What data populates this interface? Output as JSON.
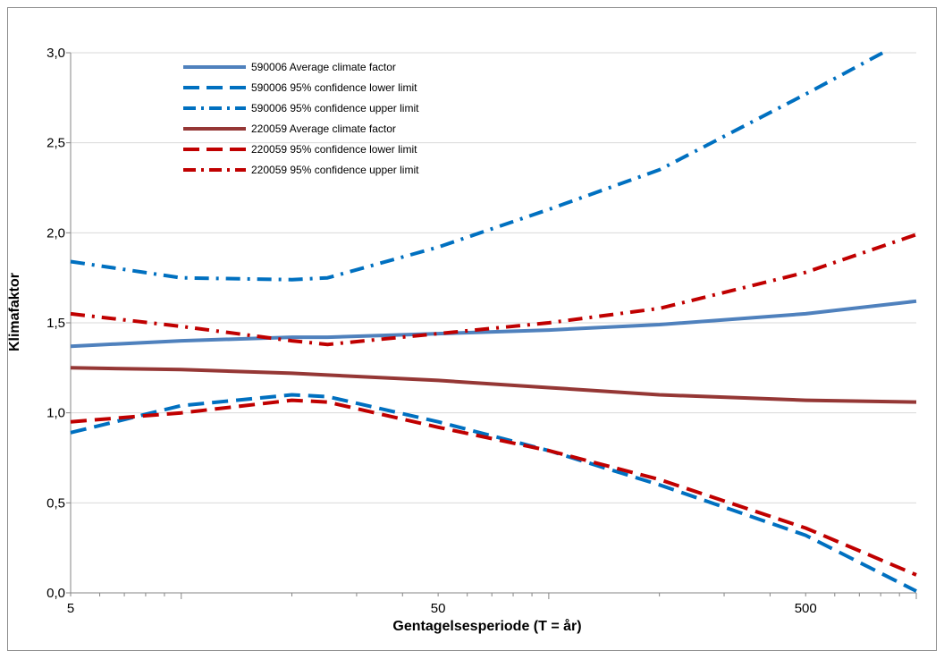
{
  "chart_data": {
    "type": "line",
    "title": "",
    "xlabel": "Gentagelsesperiode (T = år)",
    "ylabel": "Klimafaktor",
    "x_scale": "log",
    "xlim": [
      5,
      1000
    ],
    "ylim": [
      0,
      3
    ],
    "x_ticks": [
      5,
      50,
      500
    ],
    "x_tick_labels": [
      "5",
      "50",
      "500"
    ],
    "y_ticks": [
      0,
      0.5,
      1.0,
      1.5,
      2.0,
      2.5,
      3.0
    ],
    "y_tick_labels": [
      "0,0",
      "0,5",
      "1,0",
      "1,5",
      "2,0",
      "2,5",
      "3,0"
    ],
    "grid": "horizontal",
    "legend_position": "top-left",
    "x": [
      5,
      10,
      20,
      25,
      50,
      100,
      200,
      500,
      1000
    ],
    "series": [
      {
        "name": "590006 Average climate factor",
        "color": "#4f81bd",
        "style": "solid",
        "values": [
          1.37,
          1.4,
          1.42,
          1.42,
          1.44,
          1.46,
          1.49,
          1.55,
          1.62
        ]
      },
      {
        "name": "590006 95% confidence  lower limit",
        "color": "#0070c0",
        "style": "dash",
        "values": [
          0.89,
          1.04,
          1.1,
          1.09,
          0.95,
          0.79,
          0.6,
          0.32,
          0.01
        ]
      },
      {
        "name": "590006 95% confidence upper  limit",
        "color": "#0070c0",
        "style": "dashdot",
        "values": [
          1.84,
          1.75,
          1.74,
          1.75,
          1.92,
          2.13,
          2.35,
          2.77,
          3.1
        ]
      },
      {
        "name": "220059 Average climate factor",
        "color": "#953735",
        "style": "solid",
        "values": [
          1.25,
          1.24,
          1.22,
          1.21,
          1.18,
          1.14,
          1.1,
          1.07,
          1.06
        ]
      },
      {
        "name": "220059 95% confidence  lower limit",
        "color": "#c00000",
        "style": "dash",
        "values": [
          0.95,
          1.0,
          1.07,
          1.06,
          0.92,
          0.79,
          0.63,
          0.36,
          0.1
        ]
      },
      {
        "name": "220059 95% confidence upper  limit",
        "color": "#c00000",
        "style": "dashdot",
        "values": [
          1.55,
          1.48,
          1.4,
          1.38,
          1.44,
          1.5,
          1.58,
          1.78,
          1.99
        ]
      }
    ]
  }
}
